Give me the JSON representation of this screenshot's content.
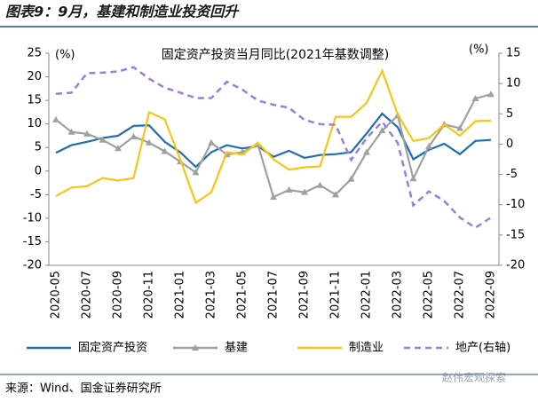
{
  "header": {
    "title": "图表9：9月，基建和制造业投资回升"
  },
  "chart_data": {
    "type": "line",
    "title": "固定资产投资当月同比(2021年基数调整)",
    "y_label": "(%)",
    "y2_label": "(%)",
    "categories": [
      "2020-05",
      null,
      "2020-07",
      null,
      "2020-09",
      null,
      "2020-11",
      null,
      "2021-01",
      null,
      "2021-03",
      null,
      "2021-05",
      null,
      "2021-07",
      null,
      "2021-09",
      null,
      "2021-11",
      null,
      "2022-01",
      null,
      "2022-03",
      null,
      "2022-05",
      null,
      "2022-07",
      null,
      "2022-09"
    ],
    "ylim": [
      -20,
      25
    ],
    "yticks": [
      -20,
      -15,
      -10,
      -5,
      0,
      5,
      10,
      15,
      20,
      25
    ],
    "y2lim": [
      -20,
      15
    ],
    "y2ticks": [
      -20,
      -15,
      -10,
      -5,
      0,
      5,
      10,
      15
    ],
    "series": [
      {
        "name": "固定资产投资",
        "color": "#1f6cb0",
        "values": [
          3.9,
          5.5,
          6.2,
          7.0,
          7.5,
          9.6,
          9.7,
          6.2,
          4.0,
          0.9,
          4.0,
          5.5,
          4.8,
          5.3,
          3.0,
          4.3,
          2.8,
          3.4,
          3.6,
          4.0,
          8.0,
          12.2,
          9.3,
          2.5,
          4.5,
          5.8,
          3.6,
          6.4,
          6.6
        ]
      },
      {
        "name": "基建",
        "color": "#a0a0a0",
        "marker": "triangle",
        "values": [
          10.9,
          8.3,
          7.9,
          6.6,
          4.8,
          7.3,
          6.0,
          4.2,
          2.0,
          -0.3,
          6.0,
          3.5,
          4.0,
          5.6,
          -5.5,
          -4.0,
          -4.5,
          -3.0,
          -5.0,
          -1.7,
          4.0,
          8.6,
          11.8,
          -1.6,
          5.2,
          9.9,
          9.1,
          15.4,
          16.3
        ]
      },
      {
        "name": "制造业",
        "color": "#f5c518",
        "values": [
          -5.3,
          -3.5,
          -3.2,
          -1.5,
          -2.0,
          -1.5,
          12.5,
          11.0,
          2.5,
          -6.7,
          -4.5,
          4.0,
          3.5,
          6.0,
          2.5,
          0.3,
          0.8,
          1.0,
          11.5,
          11.5,
          14.5,
          21.3,
          12.0,
          6.4,
          7.0,
          9.9,
          7.5,
          10.6,
          10.7
        ]
      },
      {
        "name": "地产(右轴)",
        "color": "#9b7ddc",
        "dashed": true,
        "axis": "y2",
        "values": [
          8.3,
          8.5,
          11.7,
          11.8,
          12.0,
          12.7,
          10.8,
          9.3,
          8.5,
          7.6,
          7.6,
          10.3,
          9.0,
          7.2,
          6.5,
          6.0,
          4.0,
          3.3,
          3.2,
          -2.6,
          1.0,
          3.7,
          0.2,
          -10.1,
          -7.8,
          -9.4,
          -12.1,
          -13.8,
          -12.1
        ]
      }
    ]
  },
  "footer": {
    "source": "来源：Wind、国金证券研究所",
    "watermark": "赵伟宏观探索"
  }
}
